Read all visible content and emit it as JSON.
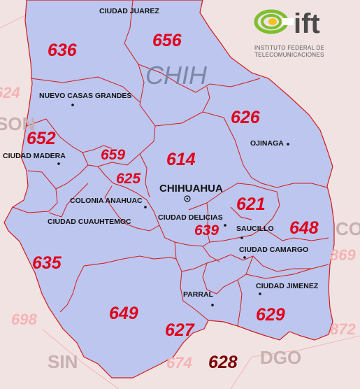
{
  "logo": {
    "wordmark": "ift",
    "line1": "INSTITUTO FEDERAL DE",
    "line2": "TELECOMUNICACIONES",
    "colors": {
      "green": "#7dbf2e",
      "yellow": "#f2c21b",
      "gray": "#4a4a4a"
    }
  },
  "state": {
    "name": "CHIH"
  },
  "capital": {
    "name": "CHIHUAHUA"
  },
  "area_codes": [
    "636",
    "656",
    "652",
    "626",
    "659",
    "614",
    "625",
    "621",
    "639",
    "648",
    "635",
    "649",
    "627",
    "629",
    "628"
  ],
  "cities": [
    "CIUDAD JUAREZ",
    "NUEVO CASAS GRANDES",
    "OJINAGA",
    "CIUDAD MADERA",
    "COLONIA ANAHUAC",
    "CIUDAD DELICIAS",
    "CIUDAD CUAUHTEMOC",
    "SAUCILLO",
    "CIUDAD CAMARGO",
    "PARRAL",
    "CIUDAD JIMENEZ"
  ],
  "neighbors": {
    "codes": [
      "624",
      "698",
      "869",
      "872",
      "674"
    ],
    "states": [
      "SON",
      "CO",
      "SIN",
      "DGO"
    ]
  },
  "colors": {
    "state_fill": "#bcc6ee",
    "outside_fill": "#f2e3e3",
    "border": "#d41b1b",
    "code_text": "#e0001b"
  }
}
